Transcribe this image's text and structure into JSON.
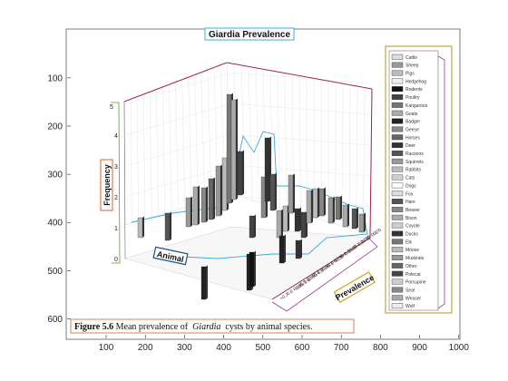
{
  "chart_data": {
    "type": "image",
    "x_ticks": [
      "100",
      "200",
      "300",
      "400",
      "500",
      "600",
      "700",
      "800",
      "900",
      "1000"
    ],
    "y_ticks": [
      "100",
      "200",
      "300",
      "400",
      "500",
      "600"
    ],
    "embedded_figure": {
      "title": "Giardia Prevalence",
      "x_axis_label": "Animal",
      "y_axis_label": "Frequency",
      "z_axis_label": "Prevalence",
      "frequency_ticks": [
        "0",
        "1",
        "2",
        "3",
        "4",
        "5"
      ],
      "prevalence_ticks": [
        "0 - 0.05",
        "0.05 - 0.1",
        "0.1 - 0.15",
        "0.15 - 0.2",
        "0.2 - 0.25",
        "0.25 - 0.3",
        "0.3 - 0.35",
        "0.35 - 0.4",
        "0.4 - 0.45",
        "0.45 - 0.5",
        "0.5 - 0.55",
        "0.55 - 0.6",
        "0.6 - 0.65",
        ">0.7"
      ],
      "legend": [
        "Cattle",
        "Sheep",
        "Pigs",
        "Hedgehog",
        "Rodents",
        "Poultry",
        "Kangaroos",
        "Goats",
        "Badger",
        "Geese",
        "Horses",
        "Deer",
        "Racoons",
        "Squirrels",
        "Rabbits",
        "Cats",
        "Dogs",
        "Fox",
        "Hare",
        "Beaver",
        "Bison",
        "Coyote",
        "Ducks",
        "Elk",
        "Moose",
        "Muskrats",
        "Other",
        "Polecat",
        "Porcupine",
        "Seal",
        "Weasel",
        "Wolf"
      ],
      "caption_prefix": "Figure 5.6",
      "caption_text_before": "Mean prevalence of ",
      "caption_italic": "Giardia",
      "caption_text_after": " cysts by animal species."
    }
  }
}
